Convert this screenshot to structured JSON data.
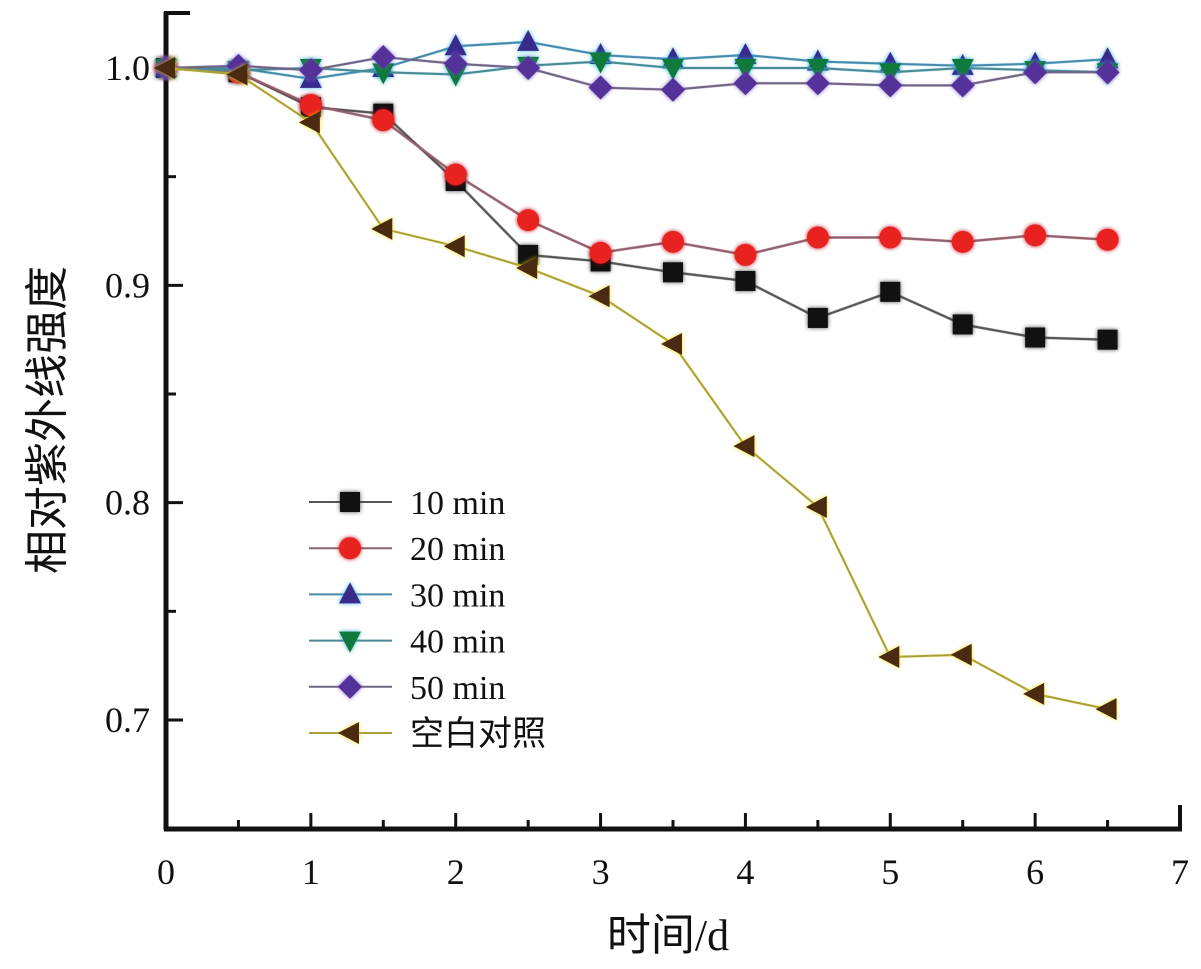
{
  "chart_data": {
    "type": "line",
    "title": "",
    "xlabel": "时间/d",
    "ylabel": "相对紫外线强度",
    "xlim": [
      0,
      7
    ],
    "ylim": [
      0.65,
      1.03
    ],
    "x_ticks": [
      "0",
      "1",
      "2",
      "3",
      "4",
      "5",
      "6",
      "7"
    ],
    "y_ticks": [
      "0.7",
      "0.8",
      "0.9",
      "1.0"
    ],
    "grid": false,
    "legend_position": "center-left",
    "x": [
      0,
      0.5,
      1,
      1.5,
      2,
      2.5,
      3,
      3.5,
      4,
      4.5,
      5,
      5.5,
      6,
      6.5
    ],
    "series": [
      {
        "name": "10 min",
        "marker": "square",
        "marker_color": "#111111",
        "glow_color": "#333333",
        "line_color": "#555555",
        "values": [
          1.0,
          0.998,
          0.982,
          0.979,
          0.948,
          0.914,
          0.911,
          0.906,
          0.902,
          0.885,
          0.897,
          0.882,
          0.876,
          0.875
        ]
      },
      {
        "name": "20 min",
        "marker": "circle",
        "marker_color": "#e8231f",
        "glow_color": "#b8001a",
        "line_color": "#8a6470",
        "values": [
          1.0,
          0.998,
          0.983,
          0.976,
          0.951,
          0.93,
          0.915,
          0.92,
          0.914,
          0.922,
          0.922,
          0.92,
          0.923,
          0.921
        ]
      },
      {
        "name": "30 min",
        "marker": "triangle-up",
        "marker_color": "#3a2a8c",
        "glow_color": "#1fa8e0",
        "line_color": "#4a8aa8",
        "values": [
          1.0,
          1.0,
          0.995,
          1.0,
          1.01,
          1.012,
          1.006,
          1.004,
          1.006,
          1.003,
          1.002,
          1.001,
          1.002,
          1.004
        ]
      },
      {
        "name": "40 min",
        "marker": "triangle-down",
        "marker_color": "#0f7a3c",
        "glow_color": "#1ba0c8",
        "line_color": "#4b8a92",
        "values": [
          1.0,
          0.999,
          1.0,
          0.998,
          0.997,
          1.001,
          1.003,
          1.0,
          1.0,
          1.0,
          0.998,
          1.0,
          0.999,
          0.998
        ]
      },
      {
        "name": "50 min",
        "marker": "diamond",
        "marker_color": "#54329a",
        "glow_color": "#7a5ac0",
        "line_color": "#6f6680",
        "values": [
          1.0,
          1.001,
          0.999,
          1.005,
          1.002,
          1.0,
          0.991,
          0.99,
          0.993,
          0.993,
          0.992,
          0.992,
          0.998,
          0.998
        ]
      },
      {
        "name": "空白对照",
        "marker": "triangle-left",
        "marker_color": "#4a2b12",
        "glow_color": "#f5e000",
        "line_color": "#a8a040",
        "values": [
          1.0,
          0.997,
          0.975,
          0.926,
          0.918,
          0.908,
          0.895,
          0.873,
          0.826,
          0.798,
          0.729,
          0.73,
          0.712,
          0.705
        ]
      }
    ]
  }
}
